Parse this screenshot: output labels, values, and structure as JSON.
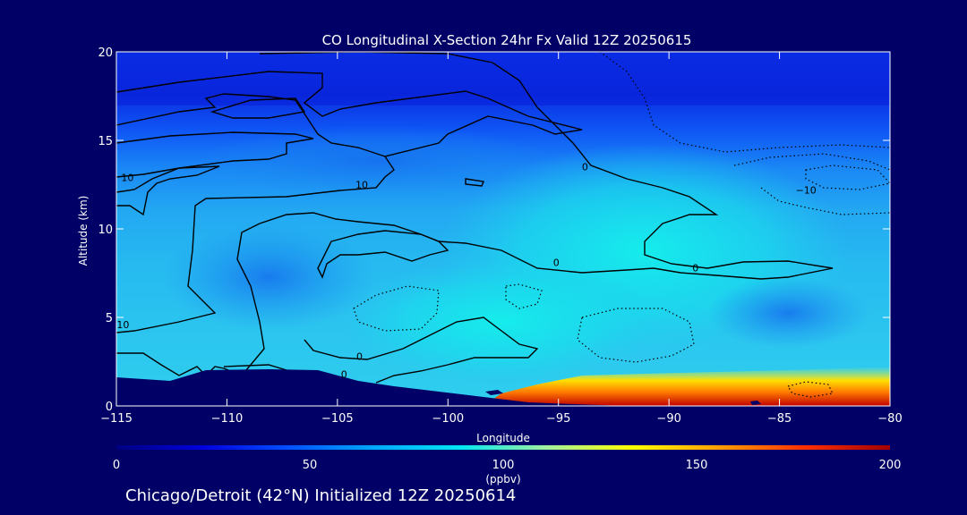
{
  "page": {
    "background": "#000066",
    "footer": "Chicago/Detroit (42°N) Initialized 12Z 20250614"
  },
  "chart_data": {
    "type": "heatmap",
    "title": "CO Longitudinal X-Section 24hr  Fx Valid 12Z 20250615",
    "xlabel": "Longitude",
    "ylabel": "Altitude (km)",
    "xlim": [
      -115,
      -80
    ],
    "ylim": [
      0,
      20
    ],
    "x_ticks": [
      -115,
      -110,
      -105,
      -100,
      -95,
      -90,
      -85,
      -80
    ],
    "x_tick_labels": [
      "−115",
      "−110",
      "−105",
      "−100",
      "−95",
      "−90",
      "−85",
      "−80"
    ],
    "y_ticks": [
      0,
      5,
      10,
      15,
      20
    ],
    "grid": false,
    "colorbar": {
      "min": 0,
      "max": 200,
      "ticks": [
        0,
        50,
        100,
        150,
        200
      ],
      "units": "(ppbv)",
      "colors": [
        "#000080",
        "#0000dd",
        "#0050ff",
        "#00a8ff",
        "#00e6f0",
        "#a0f0a0",
        "#ffff00",
        "#ffa000",
        "#ff3000",
        "#a00000"
      ]
    },
    "contour_labels": [
      {
        "text": "10",
        "lon": -114.5,
        "alt": 12.7
      },
      {
        "text": "10",
        "lon": -103.9,
        "alt": 12.3
      },
      {
        "text": "10",
        "lon": -114.7,
        "alt": 4.4
      },
      {
        "text": "0",
        "lon": -93.8,
        "alt": 13.3
      },
      {
        "text": "0",
        "lon": -95.1,
        "alt": 7.9
      },
      {
        "text": "0",
        "lon": -88.8,
        "alt": 7.6
      },
      {
        "text": "−10",
        "lon": -83.8,
        "alt": 12.0
      },
      {
        "text": "0",
        "lon": -104.0,
        "alt": 2.6
      },
      {
        "text": "0",
        "lon": -104.7,
        "alt": 1.6
      }
    ]
  }
}
